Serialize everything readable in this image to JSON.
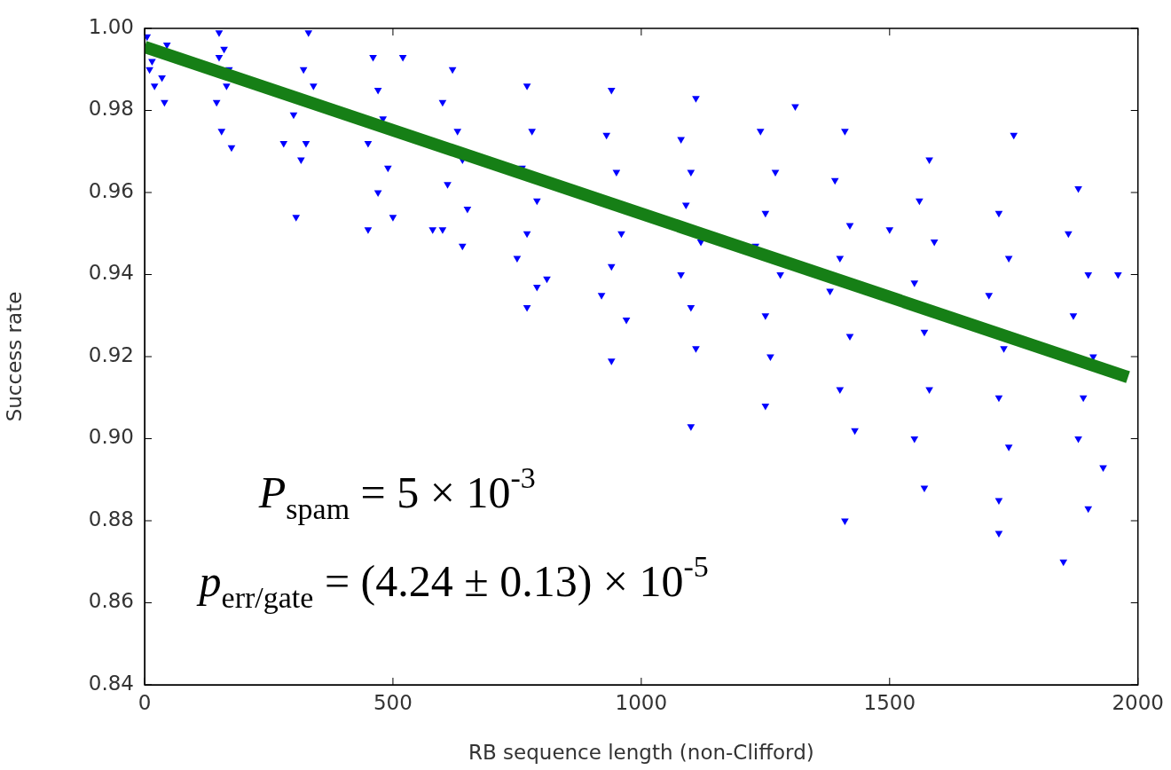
{
  "chart_data": {
    "type": "scatter",
    "xlabel": "RB sequence length (non-Clifford)",
    "ylabel": "Success rate",
    "xlim": [
      0,
      2000
    ],
    "xticks": [
      0,
      500,
      1000,
      1500,
      2000
    ],
    "ylim": [
      0.84,
      1.0
    ],
    "yticks": [
      0.84,
      0.86,
      0.88,
      {
        "value": 0.9,
        "label": "0.90"
      },
      0.92,
      0.94,
      0.96,
      0.98,
      {
        "value": 1.0,
        "label": "1.00"
      }
    ],
    "grid": false,
    "legend": false,
    "annotations": [
      "P$_{spam}$ = 5 × 10$^{-3}$",
      "p$_{err/gate}$ = (4.24 ± 0.13) × 10$^{-5}$"
    ],
    "series": [
      {
        "type": "scatter",
        "marker": "triangle",
        "color": "#0000ff",
        "x": [
          5,
          10,
          20,
          40,
          45,
          15,
          35,
          150,
          160,
          170,
          145,
          155,
          175,
          165,
          150,
          330,
          320,
          300,
          325,
          315,
          305,
          280,
          340,
          460,
          470,
          480,
          450,
          490,
          470,
          500,
          450,
          520,
          620,
          600,
          630,
          640,
          610,
          650,
          600,
          640,
          580,
          770,
          780,
          760,
          790,
          770,
          750,
          790,
          770,
          810,
          940,
          930,
          950,
          960,
          940,
          920,
          970,
          940,
          1110,
          1080,
          1100,
          1090,
          1120,
          1080,
          1100,
          1110,
          1100,
          1240,
          1270,
          1250,
          1230,
          1280,
          1250,
          1260,
          1250,
          1310,
          1410,
          1390,
          1420,
          1400,
          1380,
          1420,
          1400,
          1430,
          1410,
          1580,
          1560,
          1590,
          1550,
          1570,
          1580,
          1550,
          1570,
          1500,
          1750,
          1720,
          1740,
          1700,
          1730,
          1720,
          1740,
          1720,
          1720,
          1880,
          1860,
          1900,
          1870,
          1910,
          1890,
          1880,
          1930,
          1850,
          1960,
          1900
        ],
        "values": [
          0.998,
          0.99,
          0.986,
          0.982,
          0.996,
          0.992,
          0.988,
          0.999,
          0.995,
          0.99,
          0.982,
          0.975,
          0.971,
          0.986,
          0.993,
          0.999,
          0.99,
          0.979,
          0.972,
          0.968,
          0.954,
          0.972,
          0.986,
          0.993,
          0.985,
          0.978,
          0.972,
          0.966,
          0.96,
          0.954,
          0.951,
          0.993,
          0.99,
          0.982,
          0.975,
          0.968,
          0.962,
          0.956,
          0.951,
          0.947,
          0.951,
          0.986,
          0.975,
          0.966,
          0.958,
          0.95,
          0.944,
          0.937,
          0.932,
          0.939,
          0.985,
          0.974,
          0.965,
          0.95,
          0.942,
          0.935,
          0.929,
          0.919,
          0.983,
          0.973,
          0.965,
          0.957,
          0.948,
          0.94,
          0.932,
          0.922,
          0.903,
          0.975,
          0.965,
          0.955,
          0.947,
          0.94,
          0.93,
          0.92,
          0.908,
          0.981,
          0.975,
          0.963,
          0.952,
          0.944,
          0.936,
          0.925,
          0.912,
          0.902,
          0.88,
          0.968,
          0.958,
          0.948,
          0.938,
          0.926,
          0.912,
          0.9,
          0.888,
          0.951,
          0.974,
          0.955,
          0.944,
          0.935,
          0.922,
          0.91,
          0.898,
          0.885,
          0.877,
          0.961,
          0.95,
          0.94,
          0.93,
          0.92,
          0.91,
          0.9,
          0.893,
          0.87,
          0.94,
          0.883
        ]
      },
      {
        "type": "line",
        "color": "#167f16",
        "x": [
          0,
          1980
        ],
        "values": [
          0.9955,
          0.915
        ]
      }
    ]
  }
}
